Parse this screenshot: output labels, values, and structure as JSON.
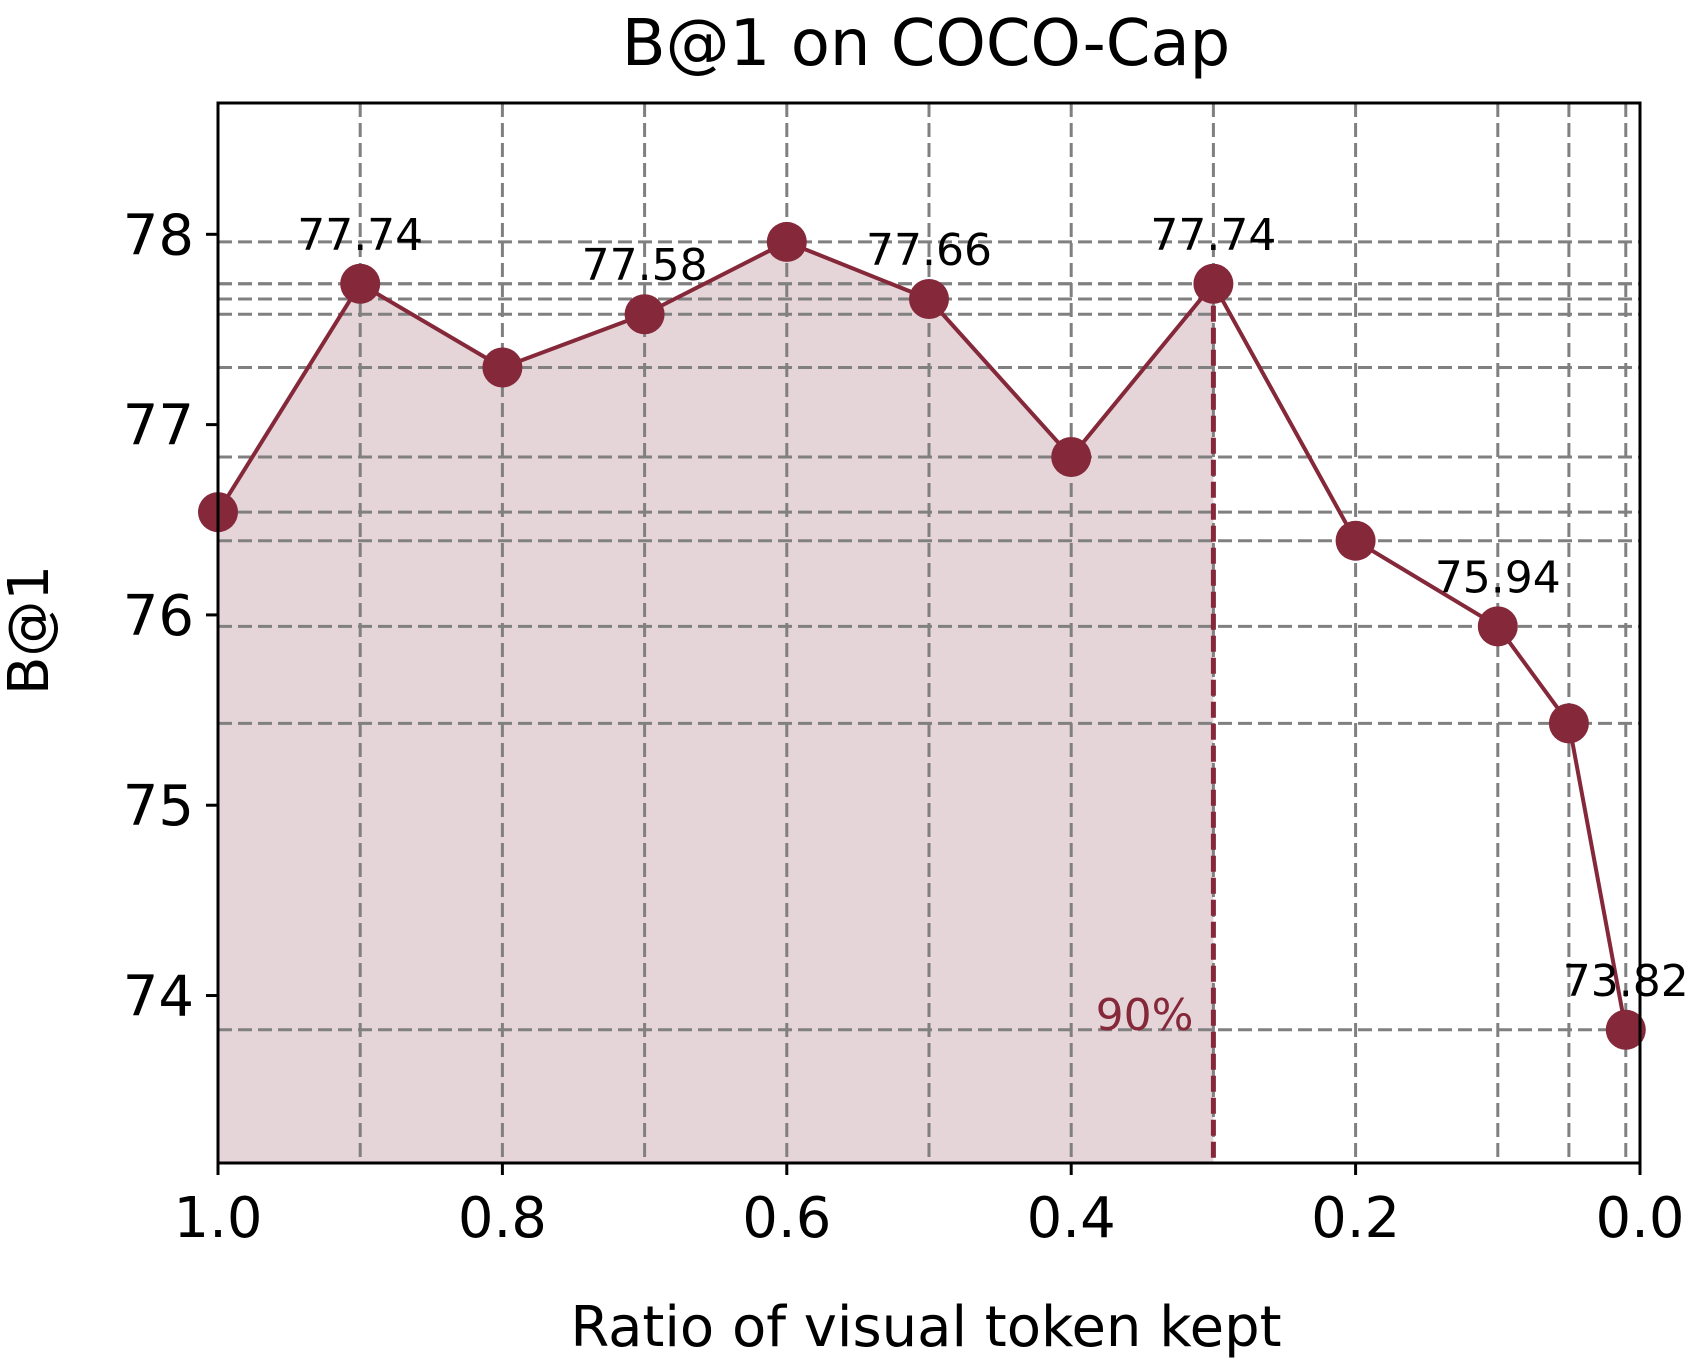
{
  "chart_data": {
    "type": "line",
    "title": "B@1 on COCO-Cap",
    "xlabel": "Ratio of visual token kept",
    "ylabel": "B@1",
    "x_reversed": true,
    "xlim": [
      1.0,
      0.0
    ],
    "ylim": [
      73.12,
      78.69
    ],
    "xticks": [
      1.0,
      0.8,
      0.6,
      0.4,
      0.2,
      0.0
    ],
    "xtick_labels": [
      "1.0",
      "0.8",
      "0.6",
      "0.4",
      "0.2",
      "0.0"
    ],
    "yticks": [
      74,
      75,
      76,
      77,
      78
    ],
    "ytick_labels": [
      "74",
      "75",
      "76",
      "77",
      "78"
    ],
    "grid": true,
    "series": [
      {
        "x": [
          1.0,
          0.9,
          0.8,
          0.7,
          0.6,
          0.5,
          0.4,
          0.3,
          0.2,
          0.1,
          0.05,
          0.01
        ],
        "y": [
          76.54,
          77.74,
          77.3,
          77.58,
          77.96,
          77.66,
          76.83,
          77.74,
          76.39,
          75.94,
          75.43,
          73.82
        ]
      }
    ],
    "data_labels": [
      {
        "x": 0.9,
        "y": 77.74,
        "text": "77.74"
      },
      {
        "x": 0.7,
        "y": 77.58,
        "text": "77.58"
      },
      {
        "x": 0.5,
        "y": 77.66,
        "text": "77.66"
      },
      {
        "x": 0.3,
        "y": 77.74,
        "text": "77.74"
      },
      {
        "x": 0.1,
        "y": 75.94,
        "text": "75.94"
      },
      {
        "x": 0.01,
        "y": 73.82,
        "text": "73.82"
      }
    ],
    "threshold": {
      "x": 0.3,
      "label": "90%"
    },
    "colors": {
      "line": "#84283a",
      "fill": "#e6d5d8",
      "threshold": "#84283a",
      "grid": "#808080"
    }
  }
}
